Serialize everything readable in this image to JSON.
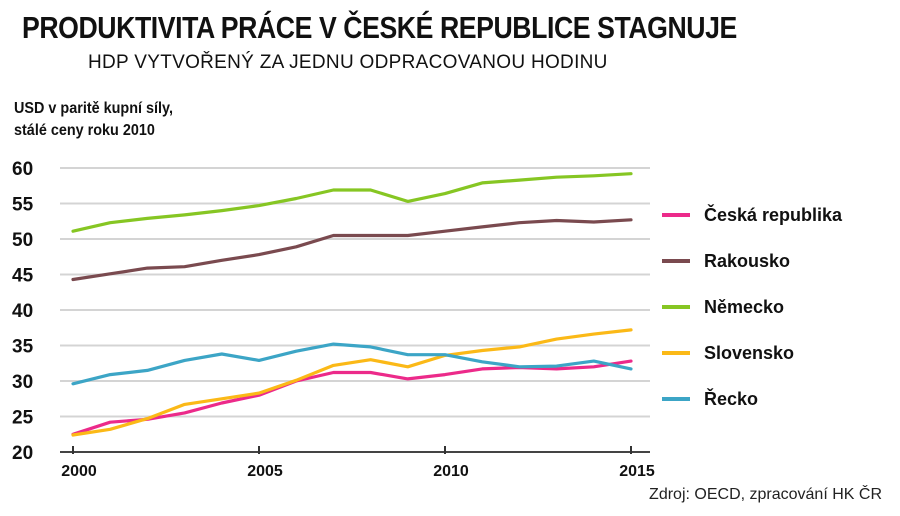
{
  "title": "PRODUKTIVITA PRÁCE V ČESKÉ REPUBLICE STAGNUJE",
  "subtitle": "HDP VYTVOŘENÝ ZA JEDNU ODPRACOVANOU HODINU",
  "ylabel_line1": "USD v paritě kupní síly,",
  "ylabel_line2": "stálé ceny roku 2010",
  "source": "Zdroj: OECD, zpracování HK ČR",
  "chart_data": {
    "type": "line",
    "title": "PRODUKTIVITA PRÁCE V ČESKÉ REPUBLICE STAGNUJE",
    "subtitle": "HDP VYTVOŘENÝ ZA JEDNU ODPRACOVANOU HODINU",
    "ylabel": "USD v paritě kupní síly, stálé ceny roku 2010",
    "xlabel": "",
    "x": [
      2000,
      2001,
      2002,
      2003,
      2004,
      2005,
      2006,
      2007,
      2008,
      2009,
      2010,
      2011,
      2012,
      2013,
      2014,
      2015
    ],
    "xticks": [
      "2000",
      "2005",
      "2010",
      "2015"
    ],
    "xtick_values": [
      2000,
      2005,
      2010,
      2015
    ],
    "yticks": [
      "20",
      "25",
      "30",
      "35",
      "40",
      "45",
      "50",
      "55",
      "60"
    ],
    "ylim": [
      20,
      60
    ],
    "grid": true,
    "legend_position": "right",
    "series": [
      {
        "name": "Česká republika",
        "color": "#ec2a8a",
        "values": [
          22.5,
          24.2,
          24.6,
          25.5,
          26.9,
          28.0,
          30.0,
          31.2,
          31.2,
          30.3,
          30.9,
          31.7,
          31.9,
          31.7,
          32.0,
          32.8
        ]
      },
      {
        "name": "Rakousko",
        "color": "#7a4a4f",
        "values": [
          44.3,
          45.1,
          45.9,
          46.1,
          47.0,
          47.8,
          48.9,
          50.5,
          50.5,
          50.5,
          51.1,
          51.7,
          52.3,
          52.6,
          52.4,
          52.7
        ]
      },
      {
        "name": "Německo",
        "color": "#86c623",
        "values": [
          51.1,
          52.3,
          52.9,
          53.4,
          54.0,
          54.7,
          55.7,
          56.9,
          56.9,
          55.3,
          56.4,
          57.9,
          58.3,
          58.7,
          58.9,
          59.2
        ]
      },
      {
        "name": "Slovensko",
        "color": "#fbb917",
        "values": [
          22.4,
          23.2,
          24.7,
          26.7,
          27.5,
          28.3,
          30.1,
          32.2,
          33.0,
          32.0,
          33.6,
          34.3,
          34.8,
          35.9,
          36.6,
          37.2
        ]
      },
      {
        "name": "Řecko",
        "color": "#3ca5c6",
        "values": [
          29.6,
          30.9,
          31.5,
          32.9,
          33.8,
          32.9,
          34.2,
          35.2,
          34.8,
          33.7,
          33.7,
          32.7,
          32.0,
          32.1,
          32.8,
          31.7
        ]
      }
    ]
  }
}
